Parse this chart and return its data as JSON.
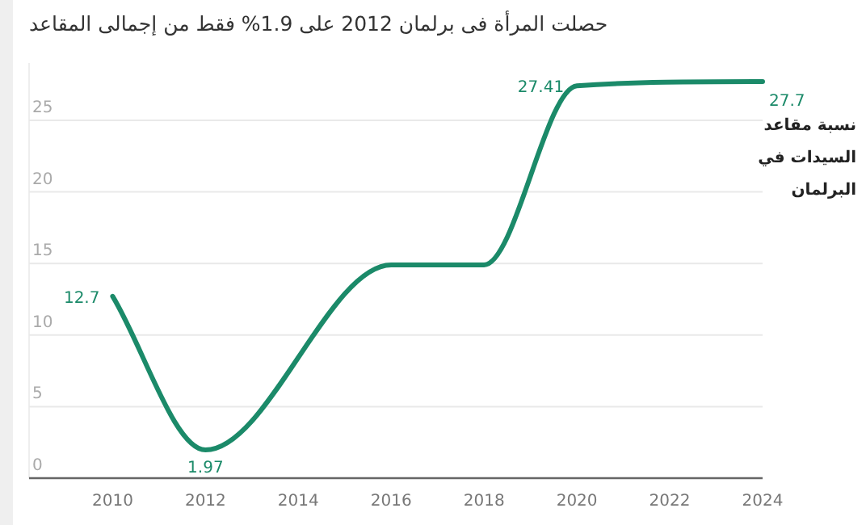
{
  "chart_data": {
    "type": "line",
    "title": "حصلت المرأة فى برلمان 2012 على 1.9% فقط من إجمالى المقاعد",
    "x": [
      2010,
      2012,
      2016,
      2018,
      2020,
      2024
    ],
    "series": [
      {
        "name": "نسبة مقاعد السيدات في البرلمان",
        "color": "#1b8a69",
        "values": [
          12.7,
          1.97,
          14.9,
          14.9,
          27.41,
          27.7
        ],
        "value_labels": [
          "12.7",
          "1.97",
          null,
          null,
          "27.41",
          "27.7"
        ]
      }
    ],
    "xlim": [
      2008.2,
      2024
    ],
    "ylim": [
      0,
      29
    ],
    "xticks": [
      2010,
      2012,
      2014,
      2016,
      2018,
      2020,
      2022,
      2024
    ],
    "yticks": [
      0,
      5,
      10,
      15,
      20,
      25
    ],
    "grid": "y",
    "legend": false,
    "marker": "none",
    "line_style": "solid"
  }
}
